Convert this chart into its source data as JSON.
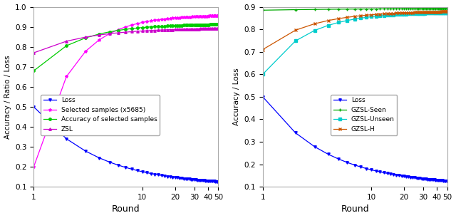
{
  "left": {
    "ylabel": "Accuracy / Ratio / Loss",
    "xlabel": "Round",
    "xlim": [
      1,
      50
    ],
    "ylim": [
      0.1,
      1.0
    ],
    "yticks": [
      0.1,
      0.2,
      0.3,
      0.4,
      0.5,
      0.6,
      0.7,
      0.8,
      0.9,
      1.0
    ],
    "xticks": [
      1,
      10,
      20,
      30,
      40,
      50
    ]
  },
  "right": {
    "ylabel": "Accuracy / Loss",
    "xlabel": "Round",
    "xlim": [
      1,
      50
    ],
    "ylim": [
      0.1,
      0.9
    ],
    "yticks": [
      0.1,
      0.2,
      0.3,
      0.4,
      0.5,
      0.6,
      0.7,
      0.8,
      0.9
    ],
    "xticks": [
      1,
      10,
      20,
      30,
      40,
      50
    ]
  }
}
